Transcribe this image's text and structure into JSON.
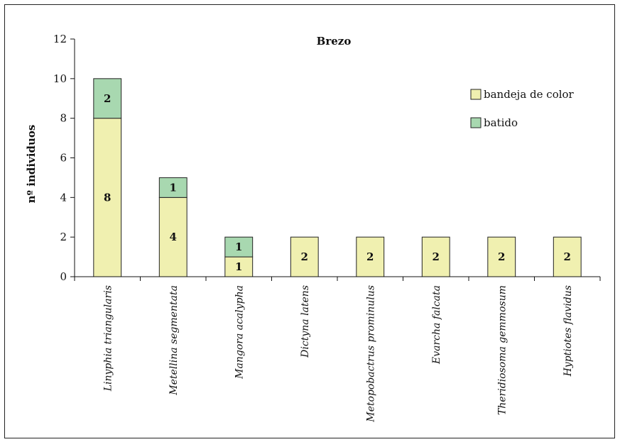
{
  "chart_data": {
    "type": "bar",
    "stacked": true,
    "title": "Brezo",
    "ylabel": "nº individuos",
    "xlabel": "",
    "ylim": [
      0,
      12
    ],
    "yticks": [
      0,
      2,
      4,
      6,
      8,
      10,
      12
    ],
    "categories": [
      "Linyphia triangularis",
      "Metellina segmentata",
      "Mangora acalypha",
      "Dictyna latens",
      "Metopobactrus prominulus",
      "Evarcha falcata",
      "Theridiosoma gemmosum",
      "Hyptiotes flavidus"
    ],
    "series": [
      {
        "name": "bandeja de color",
        "color": "#f0f0b0",
        "values": [
          8,
          4,
          1,
          2,
          2,
          2,
          2,
          2
        ]
      },
      {
        "name": "batido",
        "color": "#a8d8b0",
        "values": [
          2,
          1,
          1,
          0,
          0,
          0,
          0,
          0
        ]
      }
    ],
    "legend_position": "right",
    "grid": false
  }
}
